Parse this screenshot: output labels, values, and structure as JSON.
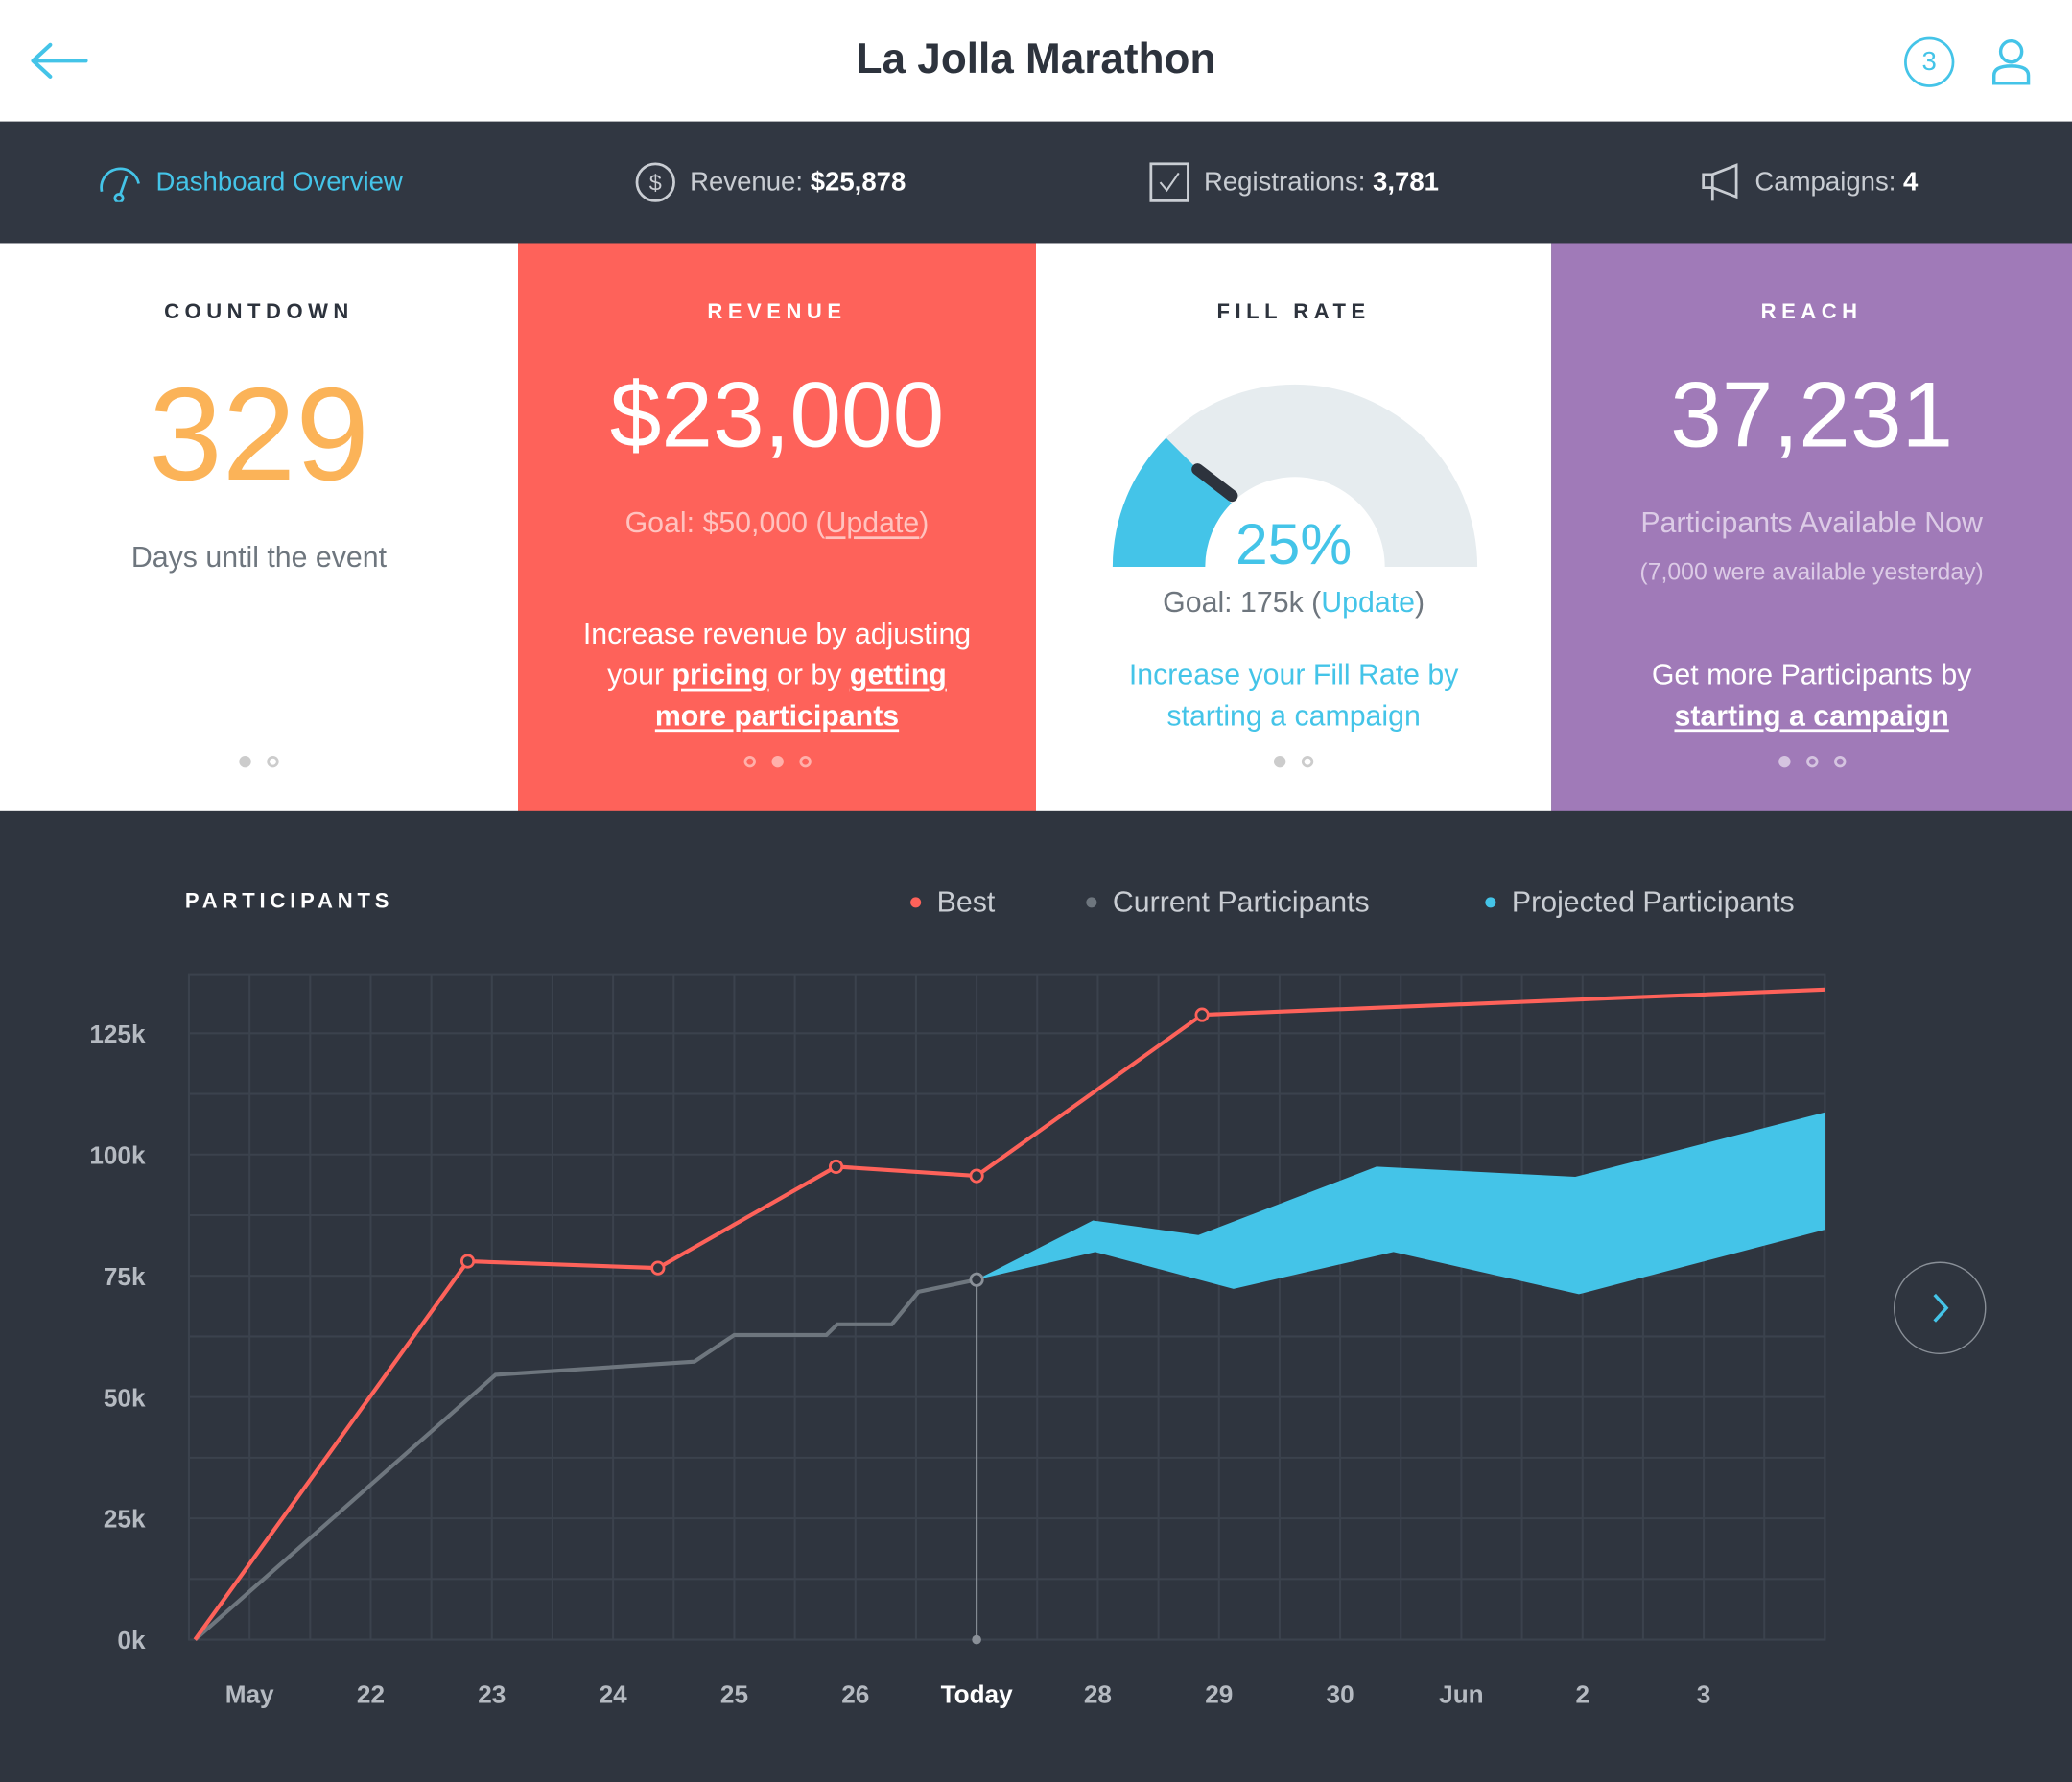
{
  "header": {
    "title": "La Jolla Marathon",
    "notification_count": "3"
  },
  "nav": {
    "dashboard": "Dashboard Overview",
    "revenue_label": "Revenue:",
    "revenue_value": "$25,878",
    "registrations_label": "Registrations:",
    "registrations_value": "3,781",
    "campaigns_label": "Campaigns:",
    "campaigns_value": "4"
  },
  "cards": {
    "countdown": {
      "title": "COUNTDOWN",
      "value": "329",
      "caption": "Days until the event"
    },
    "revenue": {
      "title": "REVENUE",
      "value": "$23,000",
      "goal_prefix": "Goal: $50,000 (",
      "goal_link": "Update",
      "goal_suffix": ")",
      "tip_1": "Increase revenue by adjusting",
      "tip_2": "your ",
      "tip_link1": "pricing",
      "tip_3": " or by ",
      "tip_link2": "getting",
      "tip_link3": "more participants"
    },
    "fill_rate": {
      "title": "FILL RATE",
      "value": "25%",
      "percent": 25,
      "goal_prefix": "Goal: 175k (",
      "goal_link": "Update",
      "goal_suffix": ")",
      "tip_1": "Increase your Fill Rate by",
      "tip_2": "starting a campaign"
    },
    "reach": {
      "title": "REACH",
      "value": "37,231",
      "caption": "Participants Available Now",
      "sub": "(7,000 were available yesterday)",
      "tip_1": "Get more Participants by",
      "tip_link": "starting a campaign"
    }
  },
  "colors": {
    "accent": "#44c4e8",
    "best": "#fe625a",
    "current": "#6e767e",
    "projected": "#44c4e8",
    "revenue_card": "#fe625a",
    "reach_card": "#a07ab8",
    "countdown": "#fbb358",
    "dark": "#313742"
  },
  "chart_data": {
    "type": "line",
    "title": "PARTICIPANTS",
    "legend": [
      "Best",
      "Current Participants",
      "Projected Participants"
    ],
    "x_tick_labels": [
      "May",
      "22",
      "23",
      "24",
      "25",
      "26",
      "Today",
      "28",
      "29",
      "30",
      "Jun",
      "2",
      "3"
    ],
    "y_tick_labels": [
      "0k",
      "25k",
      "50k",
      "75k",
      "100k",
      "125k"
    ],
    "y_ticks": [
      0,
      25000,
      50000,
      75000,
      100000,
      125000
    ],
    "xlim": [
      -0.5,
      13
    ],
    "ylim": [
      0,
      137000
    ],
    "today_index": 6,
    "series": [
      {
        "name": "Best",
        "points": [
          [
            -0.45,
            0
          ],
          [
            1.8,
            78000
          ],
          [
            3.37,
            76600
          ],
          [
            4.84,
            97500
          ],
          [
            6,
            95600
          ],
          [
            7.86,
            128800
          ],
          [
            13,
            134000
          ]
        ],
        "markers": [
          1,
          2,
          3,
          4,
          5
        ]
      },
      {
        "name": "Current Participants",
        "points": [
          [
            -0.45,
            0
          ],
          [
            2.03,
            54600
          ],
          [
            3.67,
            57300
          ],
          [
            4.0,
            62800
          ],
          [
            4.76,
            62800
          ],
          [
            4.85,
            65000
          ],
          [
            5.3,
            65000
          ],
          [
            5.52,
            71700
          ],
          [
            6,
            74200
          ]
        ]
      },
      {
        "name": "Projected Participants",
        "upper": [
          [
            6,
            74200
          ],
          [
            6.96,
            86400
          ],
          [
            7.83,
            83400
          ],
          [
            9.3,
            97500
          ],
          [
            10.94,
            95400
          ],
          [
            13,
            108700
          ]
        ],
        "lower": [
          [
            6,
            74200
          ],
          [
            6.98,
            79900
          ],
          [
            8.12,
            72300
          ],
          [
            9.44,
            79900
          ],
          [
            10.97,
            71200
          ],
          [
            13,
            84500
          ]
        ]
      }
    ]
  }
}
